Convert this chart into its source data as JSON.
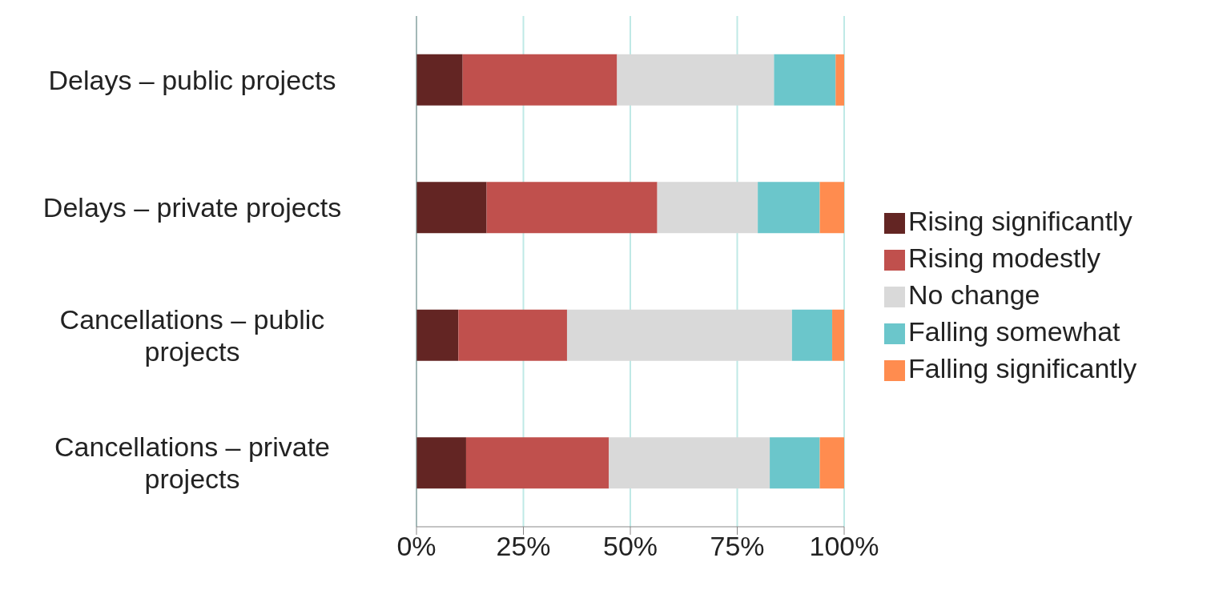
{
  "chart_data": {
    "type": "bar",
    "orientation": "horizontal",
    "stacked": true,
    "categories": [
      "Delays – public projects",
      "Delays – private projects",
      "Cancellations – public projects",
      "Cancellations – private projects"
    ],
    "series": [
      {
        "name": "Rising significantly",
        "color": "#632523",
        "values": [
          10.8,
          16.4,
          9.8,
          11.6
        ]
      },
      {
        "name": "Rising modestly",
        "color": "#c0504d",
        "values": [
          36.1,
          39.9,
          25.4,
          33.4
        ]
      },
      {
        "name": "No change",
        "color": "#d9d9d9",
        "values": [
          36.7,
          23.5,
          52.6,
          37.6
        ]
      },
      {
        "name": "Falling somewhat",
        "color": "#6bc6cb",
        "values": [
          14.4,
          14.5,
          9.4,
          11.7
        ]
      },
      {
        "name": "Falling significantly",
        "color": "#ff8c4f",
        "values": [
          2.0,
          5.7,
          2.8,
          5.7
        ]
      }
    ],
    "xlim": [
      0,
      100
    ],
    "xticks": [
      {
        "value": 0,
        "label": "0%"
      },
      {
        "value": 25,
        "label": "25%"
      },
      {
        "value": 50,
        "label": "50%"
      },
      {
        "value": 75,
        "label": "75%"
      },
      {
        "value": 100,
        "label": "100%"
      }
    ],
    "grid": "x",
    "legend": "right"
  }
}
